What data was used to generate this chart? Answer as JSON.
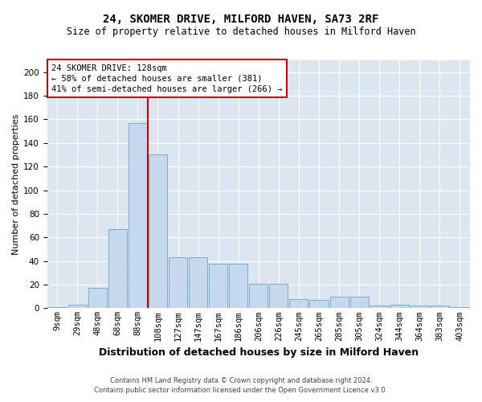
{
  "title": "24, SKOMER DRIVE, MILFORD HAVEN, SA73 2RF",
  "subtitle": "Size of property relative to detached houses in Milford Haven",
  "xlabel": "Distribution of detached houses by size in Milford Haven",
  "ylabel": "Number of detached properties",
  "bar_color": "#c5d8ed",
  "bar_edge_color": "#7aaace",
  "background_color": "#dce6f0",
  "fig_background_color": "#ffffff",
  "grid_color": "#ffffff",
  "bins": [
    "9sqm",
    "29sqm",
    "48sqm",
    "68sqm",
    "88sqm",
    "108sqm",
    "127sqm",
    "147sqm",
    "167sqm",
    "186sqm",
    "206sqm",
    "226sqm",
    "245sqm",
    "265sqm",
    "285sqm",
    "305sqm",
    "324sqm",
    "344sqm",
    "364sqm",
    "383sqm",
    "403sqm"
  ],
  "values": [
    1,
    3,
    17,
    67,
    157,
    130,
    43,
    43,
    38,
    38,
    21,
    21,
    8,
    7,
    10,
    10,
    2,
    3,
    2,
    2,
    1
  ],
  "ylim": [
    0,
    210
  ],
  "yticks": [
    0,
    20,
    40,
    60,
    80,
    100,
    120,
    140,
    160,
    180,
    200
  ],
  "vline_bin_index": 5,
  "annotation_text1": "24 SKOMER DRIVE: 128sqm",
  "annotation_text2": "← 58% of detached houses are smaller (381)",
  "annotation_text3": "41% of semi-detached houses are larger (266) →",
  "footer1": "Contains HM Land Registry data © Crown copyright and database right 2024.",
  "footer2": "Contains public sector information licensed under the Open Government Licence v3.0.",
  "annotation_box_color": "#ffffff",
  "annotation_box_edge": "#cc0000",
  "vline_color": "#cc0000",
  "title_fontsize": 10,
  "subtitle_fontsize": 8.5,
  "ylabel_fontsize": 8,
  "xlabel_fontsize": 9,
  "tick_fontsize": 7.5,
  "annotation_fontsize": 7.5,
  "footer_fontsize": 6
}
